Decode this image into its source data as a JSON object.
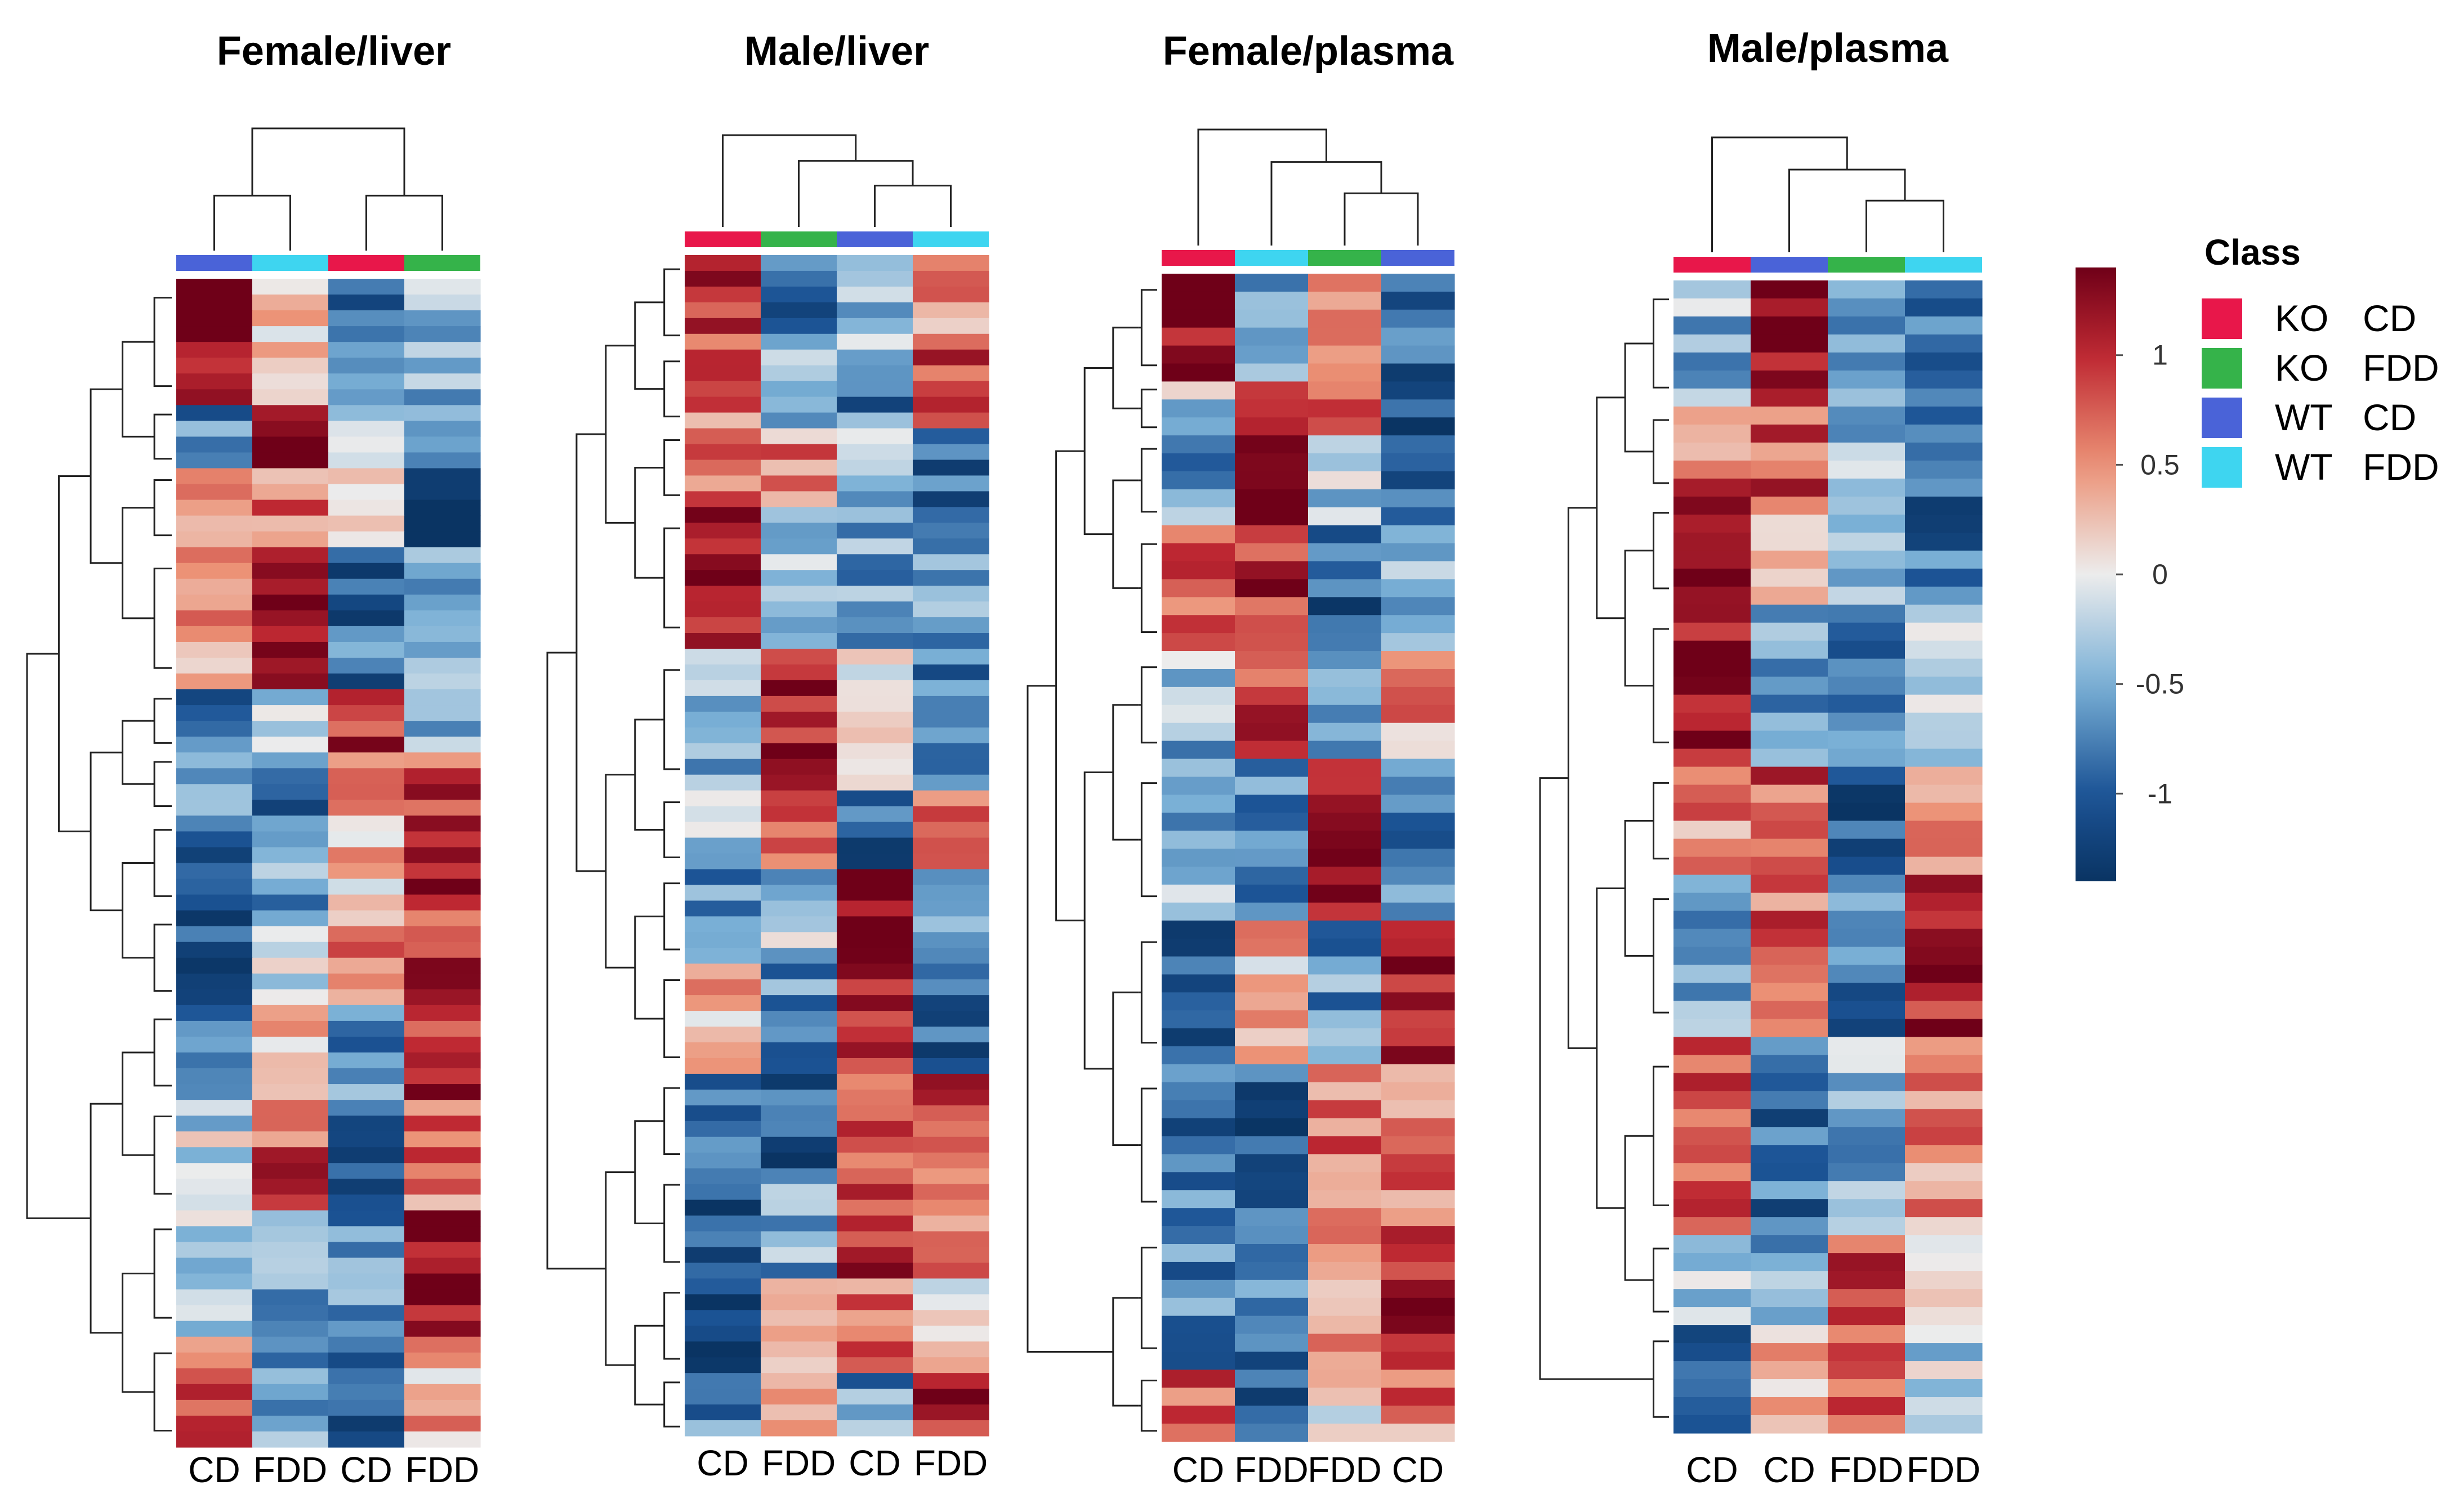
{
  "chart_data": {
    "type": "heatmap",
    "class_colors": {
      "KO CD": "#e8174a",
      "KO FDD": "#35b34a",
      "WT CD": "#4a63d8",
      "WT FDD": "#3ed5f0"
    },
    "color_scale": {
      "min": -1.4,
      "max": 1.4,
      "ticks": [
        "1",
        "0.5",
        "0",
        "-0.5",
        "-1"
      ],
      "low_color": "#0a3463",
      "mid_color": "#ececec",
      "high_color": "#6f0018"
    },
    "legend": {
      "title": "Class",
      "items": [
        {
          "key": "KO CD",
          "group": "KO",
          "diet": "CD",
          "color": "#e8174a"
        },
        {
          "key": "KO FDD",
          "group": "KO",
          "diet": "FDD",
          "color": "#35b34a"
        },
        {
          "key": "WT CD",
          "group": "WT",
          "diet": "CD",
          "color": "#4a63d8"
        },
        {
          "key": "WT FDD",
          "group": "WT",
          "diet": "FDD",
          "color": "#3ed5f0"
        }
      ]
    },
    "panels": [
      {
        "title": "Female/liver",
        "columns": [
          "WT CD",
          "WT FDD",
          "KO CD",
          "KO FDD"
        ],
        "col_labels": [
          "CD",
          "FDD",
          "CD",
          "FDD"
        ],
        "clusters": [
          {
            "rows": 8,
            "values": [
              1.3,
              0.2,
              -0.9,
              -0.5
            ]
          },
          {
            "rows": 4,
            "values": [
              -0.8,
              1.3,
              -0.3,
              -0.4
            ]
          },
          {
            "rows": 5,
            "values": [
              0.5,
              0.6,
              0.1,
              -1.2
            ]
          },
          {
            "rows": 9,
            "values": [
              0.4,
              1.1,
              -0.9,
              -0.6
            ]
          },
          {
            "rows": 4,
            "values": [
              -0.8,
              -0.3,
              1.1,
              -0.6
            ]
          },
          {
            "rows": 4,
            "values": [
              -0.5,
              -0.9,
              0.6,
              0.9
            ]
          },
          {
            "rows": 6,
            "values": [
              -0.9,
              -0.5,
              0.2,
              1.1
            ]
          },
          {
            "rows": 6,
            "values": [
              -1.0,
              -0.2,
              0.5,
              0.9
            ]
          },
          {
            "rows": 6,
            "values": [
              -0.8,
              0.4,
              -0.7,
              1.0
            ]
          },
          {
            "rows": 7,
            "values": [
              -0.2,
              0.8,
              -1.1,
              0.6
            ]
          },
          {
            "rows": 8,
            "values": [
              -0.3,
              -0.6,
              -0.6,
              1.3
            ]
          },
          {
            "rows": 7,
            "values": [
              0.8,
              -0.5,
              -0.9,
              0.3
            ]
          }
        ]
      },
      {
        "title": "Male/liver",
        "columns": [
          "KO CD",
          "KO FDD",
          "WT CD",
          "WT FDD"
        ],
        "col_labels": [
          "CD",
          "FDD",
          "CD",
          "FDD"
        ],
        "clusters": [
          {
            "rows": 6,
            "values": [
              0.9,
              -1.0,
              -0.3,
              0.6
            ]
          },
          {
            "rows": 5,
            "values": [
              0.6,
              -0.4,
              -0.8,
              0.9
            ]
          },
          {
            "rows": 5,
            "values": [
              0.8,
              0.5,
              -0.4,
              -0.9
            ]
          },
          {
            "rows": 9,
            "values": [
              1.3,
              -0.4,
              -0.5,
              -0.5
            ]
          },
          {
            "rows": 9,
            "values": [
              -0.5,
              1.2,
              0.2,
              -0.9
            ]
          },
          {
            "rows": 5,
            "values": [
              -0.4,
              0.9,
              -1.0,
              0.5
            ]
          },
          {
            "rows": 6,
            "values": [
              -0.7,
              -0.3,
              1.3,
              -0.5
            ]
          },
          {
            "rows": 7,
            "values": [
              0.4,
              -0.6,
              0.9,
              -0.9
            ]
          },
          {
            "rows": 6,
            "values": [
              -0.7,
              -1.0,
              0.7,
              0.8
            ]
          },
          {
            "rows": 7,
            "values": [
              -1.1,
              -0.5,
              1.0,
              0.4
            ]
          },
          {
            "rows": 6,
            "values": [
              -1.2,
              0.5,
              0.6,
              0.1
            ]
          },
          {
            "rows": 4,
            "values": [
              -0.8,
              0.1,
              -0.6,
              1.2
            ]
          }
        ]
      },
      {
        "title": "Female/plasma",
        "columns": [
          "KO CD",
          "WT FDD",
          "KO FDD",
          "WT CD"
        ],
        "col_labels": [
          "CD",
          "FDD",
          "FDD",
          "CD"
        ],
        "clusters": [
          {
            "rows": 6,
            "values": [
              1.2,
              -0.5,
              0.5,
              -1.0
            ]
          },
          {
            "rows": 3,
            "values": [
              -0.3,
              0.8,
              0.6,
              -1.2
            ]
          },
          {
            "rows": 5,
            "values": [
              -0.6,
              1.3,
              -0.3,
              -0.8
            ]
          },
          {
            "rows": 7,
            "values": [
              0.7,
              1.0,
              -1.0,
              -0.4
            ]
          },
          {
            "rows": 6,
            "values": [
              -0.4,
              1.0,
              -0.8,
              0.5
            ]
          },
          {
            "rows": 9,
            "values": [
              -0.4,
              -0.7,
              1.3,
              -0.8
            ]
          },
          {
            "rows": 8,
            "values": [
              -0.9,
              0.3,
              -0.6,
              1.2
            ]
          },
          {
            "rows": 9,
            "values": [
              -0.8,
              -1.0,
              0.7,
              0.7
            ]
          },
          {
            "rows": 8,
            "values": [
              -0.8,
              -0.8,
              0.4,
              1.2
            ]
          },
          {
            "rows": 4,
            "values": [
              0.7,
              -1.0,
              0.0,
              0.6
            ]
          }
        ]
      },
      {
        "title": "Male/plasma",
        "columns": [
          "KO CD",
          "WT CD",
          "KO FDD",
          "WT FDD"
        ],
        "col_labels": [
          "CD",
          "CD",
          "FDD",
          "FDD"
        ],
        "clusters": [
          {
            "rows": 7,
            "values": [
              -0.4,
              1.3,
              -0.5,
              -0.8
            ]
          },
          {
            "rows": 5,
            "values": [
              0.7,
              0.8,
              -0.5,
              -1.0
            ]
          },
          {
            "rows": 6,
            "values": [
              1.1,
              0.3,
              -0.6,
              -0.9
            ]
          },
          {
            "rows": 9,
            "values": [
              1.3,
              -0.5,
              -0.7,
              -0.4
            ]
          },
          {
            "rows": 6,
            "values": [
              0.6,
              0.8,
              -1.1,
              0.4
            ]
          },
          {
            "rows": 9,
            "values": [
              -0.6,
              0.7,
              -0.8,
              1.2
            ]
          },
          {
            "rows": 11,
            "values": [
              0.9,
              -0.9,
              -0.4,
              0.5
            ]
          },
          {
            "rows": 5,
            "values": [
              -0.4,
              -0.6,
              0.8,
              0.2
            ]
          },
          {
            "rows": 6,
            "values": [
              -0.9,
              0.4,
              0.6,
              -0.2
            ]
          }
        ]
      }
    ]
  }
}
